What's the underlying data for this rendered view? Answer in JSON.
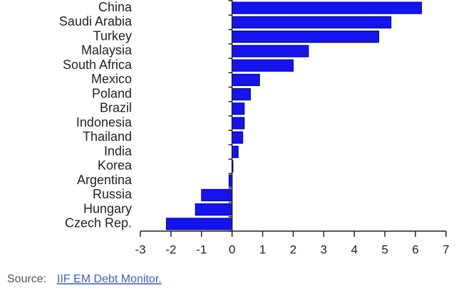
{
  "chart_data": {
    "type": "barh",
    "categories": [
      "China",
      "Saudi Arabia",
      "Turkey",
      "Malaysia",
      "South Africa",
      "Mexico",
      "Poland",
      "Brazil",
      "Indonesia",
      "Thailand",
      "India",
      "Korea",
      "Argentina",
      "Russia",
      "Hungary",
      "Czech Rep."
    ],
    "values": [
      6.2,
      5.2,
      4.8,
      2.5,
      2.0,
      0.9,
      0.6,
      0.4,
      0.4,
      0.35,
      0.2,
      0.03,
      -0.1,
      -1.0,
      -1.2,
      -2.15
    ],
    "color": "#1414f0",
    "xlim": [
      -3,
      7
    ],
    "xticks": [
      -3,
      -2,
      -1,
      0,
      1,
      2,
      3,
      4,
      5,
      6,
      7
    ],
    "source_label": "Source:",
    "source_link": "IIF EM Debt Monitor."
  }
}
